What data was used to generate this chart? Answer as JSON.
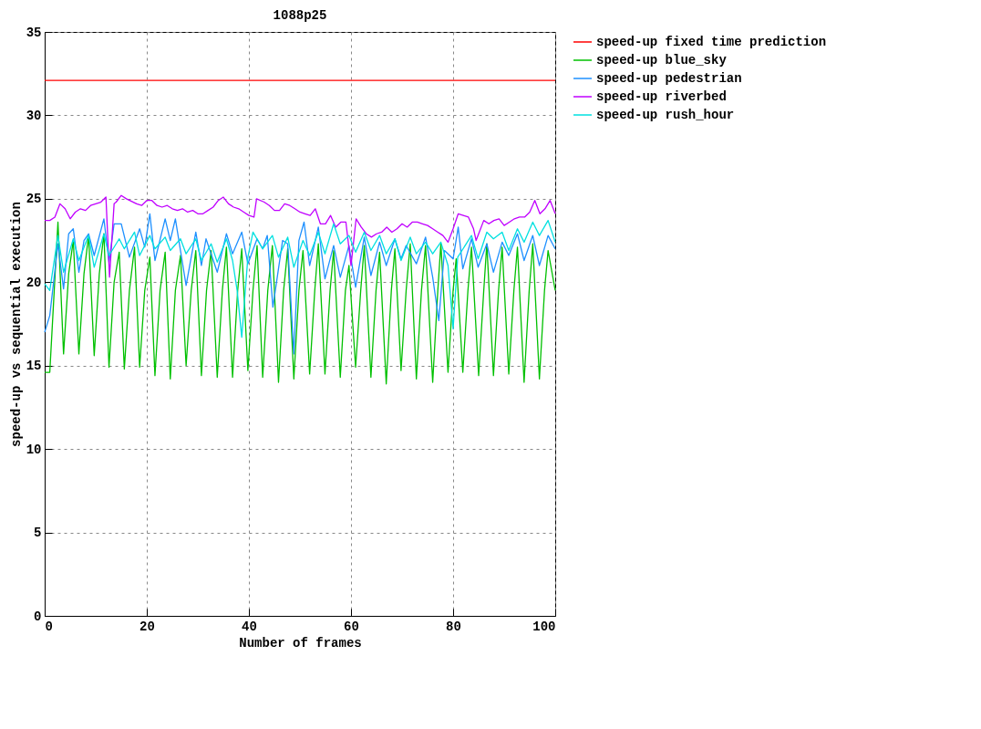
{
  "chart_data": {
    "type": "line",
    "title": "1088p25",
    "xlabel": "Number of frames",
    "ylabel": "speed-up vs sequential execution",
    "xlim": [
      0,
      100
    ],
    "xticks": [
      0,
      20,
      40,
      60,
      80,
      100
    ],
    "ylim": [
      0,
      35
    ],
    "yticks": [
      0,
      5,
      10,
      15,
      20,
      25,
      30,
      35
    ],
    "grid": true,
    "legend": "top right",
    "marker": "none",
    "line_style": "solid",
    "series": [
      {
        "name": "speed-up fixed time prediction",
        "color": "#ff0000",
        "x": [
          0,
          100
        ],
        "values": [
          32.1,
          32.1
        ]
      },
      {
        "name": "speed-up blue_sky",
        "color": "#00c000",
        "x": [
          0,
          1,
          2.6,
          3.7,
          4.7,
          5.6,
          6.7,
          7.7,
          8.6,
          9.7,
          10.7,
          11.6,
          12.6,
          13.6,
          14.6,
          15.6,
          16.6,
          17.6,
          18.6,
          19.6,
          20.6,
          21.6,
          22.6,
          23.6,
          24.6,
          25.6,
          26.6,
          27.7,
          28.7,
          29.6,
          30.7,
          31.7,
          32.6,
          33.8,
          34.8,
          35.6,
          36.8,
          37.8,
          38.6,
          39.8,
          40.8,
          41.6,
          42.7,
          43.7,
          44.6,
          45.8,
          46.8,
          47.6,
          48.8,
          49.8,
          50.6,
          51.9,
          52.9,
          53.6,
          54.9,
          55.9,
          56.6,
          57.9,
          58.9,
          59.6,
          60.9,
          61.9,
          62.6,
          63.9,
          64.9,
          65.6,
          66.9,
          67.9,
          68.6,
          69.8,
          70.8,
          71.6,
          72.8,
          73.8,
          74.6,
          76.0,
          77.0,
          77.6,
          79.0,
          80.0,
          80.6,
          81.9,
          82.9,
          83.6,
          85.0,
          86.0,
          86.6,
          87.9,
          88.9,
          89.6,
          90.9,
          91.9,
          92.6,
          93.9,
          94.9,
          95.6,
          96.9,
          97.9,
          98.6,
          100
        ],
        "values": [
          14.6,
          14.6,
          23.6,
          15.7,
          20.5,
          22.5,
          15.7,
          20.5,
          22.8,
          15.6,
          20.5,
          22.9,
          14.9,
          20.0,
          21.8,
          14.8,
          19.5,
          22.1,
          14.9,
          19.5,
          21.5,
          14.4,
          19.5,
          21.8,
          14.2,
          19.5,
          21.6,
          15.0,
          19.5,
          21.9,
          14.4,
          19.5,
          21.9,
          14.3,
          19.5,
          22.1,
          14.3,
          19.5,
          22.0,
          14.7,
          19.5,
          22.2,
          14.3,
          19.5,
          22.2,
          14.0,
          19.5,
          22.0,
          14.2,
          19.5,
          21.9,
          14.5,
          19.5,
          22.3,
          14.5,
          19.5,
          21.9,
          14.3,
          19.5,
          21.0,
          14.9,
          19.5,
          22.2,
          14.3,
          19.5,
          21.8,
          13.9,
          19.5,
          22.0,
          14.7,
          19.5,
          22.3,
          14.2,
          19.5,
          22.2,
          14.0,
          19.5,
          22.3,
          14.6,
          19.5,
          21.4,
          14.6,
          19.5,
          22.1,
          14.4,
          19.5,
          22.3,
          14.4,
          19.5,
          22.1,
          14.5,
          19.5,
          22.1,
          14.0,
          19.5,
          22.3,
          14.2,
          19.5,
          21.9,
          19.5
        ]
      },
      {
        "name": "speed-up pedestrian",
        "color": "#1e90ff",
        "x": [
          0,
          1,
          2.6,
          3.7,
          4.7,
          5.6,
          6.7,
          7.7,
          8.6,
          9.7,
          11.6,
          12.6,
          13.6,
          15.0,
          16.6,
          18.6,
          19.6,
          20.6,
          21.6,
          23.6,
          24.6,
          25.6,
          27.7,
          29.6,
          30.7,
          31.6,
          33.8,
          35.6,
          36.8,
          38.6,
          39.8,
          41.6,
          42.7,
          43.6,
          44.7,
          46.6,
          47.6,
          48.8,
          49.8,
          50.8,
          51.9,
          53.6,
          54.9,
          56.6,
          57.9,
          59.6,
          60.9,
          62.6,
          63.9,
          65.6,
          66.9,
          68.6,
          69.8,
          70.8,
          72.8,
          74.6,
          76.0,
          77.2,
          78.3,
          80.0,
          81.0,
          81.9,
          83.6,
          84.9,
          86.6,
          87.9,
          89.6,
          90.9,
          92.6,
          93.9,
          95.6,
          96.9,
          98.6,
          100
        ],
        "values": [
          17.0,
          18.0,
          22.3,
          19.6,
          22.9,
          23.2,
          20.6,
          22.5,
          22.9,
          21.6,
          23.8,
          21.2,
          23.5,
          23.5,
          21.5,
          23.2,
          22.1,
          24.1,
          21.3,
          23.8,
          22.5,
          23.8,
          19.8,
          23.0,
          21.0,
          22.6,
          20.6,
          22.9,
          21.7,
          23.0,
          21.1,
          22.6,
          22.0,
          22.8,
          18.5,
          22.5,
          22.3,
          15.7,
          22.5,
          23.6,
          21.0,
          23.3,
          20.2,
          22.2,
          20.3,
          22.2,
          19.7,
          22.7,
          20.4,
          22.4,
          21.0,
          22.6,
          21.4,
          22.2,
          21.1,
          22.7,
          20.3,
          17.7,
          21.9,
          21.4,
          23.3,
          20.8,
          22.6,
          20.9,
          22.3,
          20.6,
          22.4,
          21.6,
          22.9,
          21.3,
          22.8,
          21.0,
          22.8,
          22.0
        ]
      },
      {
        "name": "speed-up riverbed",
        "color": "#c000ff",
        "x": [
          0,
          1,
          2,
          3,
          4,
          5,
          6,
          7,
          8,
          9,
          10,
          11,
          12,
          12.7,
          13.6,
          14,
          15,
          16,
          18,
          19,
          20,
          21,
          22,
          23,
          24,
          25,
          26,
          27,
          28,
          29,
          30,
          31,
          32,
          33,
          34,
          35,
          36,
          37,
          38,
          39,
          40,
          41,
          41.5,
          43,
          44,
          45,
          46,
          47,
          48,
          49,
          50,
          51,
          52,
          53,
          54,
          55,
          56,
          57,
          58,
          59,
          60,
          61,
          62,
          63,
          64,
          65,
          66,
          67,
          68,
          69,
          70,
          71,
          72,
          73,
          74,
          75,
          76,
          77,
          78,
          79,
          80,
          81,
          82,
          83,
          84,
          84.5,
          86,
          87,
          88,
          89,
          90,
          91,
          92,
          93,
          94,
          95,
          96,
          97,
          98,
          99,
          100
        ],
        "values": [
          23.7,
          23.7,
          23.9,
          24.7,
          24.4,
          23.8,
          24.2,
          24.4,
          24.3,
          24.6,
          24.7,
          24.8,
          25.1,
          20.3,
          24.7,
          24.8,
          25.2,
          25.0,
          24.7,
          24.6,
          24.9,
          24.9,
          24.6,
          24.5,
          24.6,
          24.4,
          24.3,
          24.4,
          24.2,
          24.3,
          24.1,
          24.1,
          24.3,
          24.5,
          24.9,
          25.1,
          24.7,
          24.5,
          24.4,
          24.2,
          24.0,
          23.9,
          25.0,
          24.8,
          24.6,
          24.3,
          24.3,
          24.7,
          24.6,
          24.4,
          24.2,
          24.1,
          24.0,
          24.4,
          23.5,
          23.5,
          24.0,
          23.3,
          23.6,
          23.6,
          21.0,
          23.8,
          23.3,
          22.9,
          22.7,
          22.9,
          23.0,
          23.3,
          23.0,
          23.2,
          23.5,
          23.3,
          23.6,
          23.6,
          23.5,
          23.4,
          23.2,
          23.0,
          22.8,
          22.4,
          23.2,
          24.1,
          24.0,
          23.9,
          23.2,
          22.5,
          23.7,
          23.5,
          23.7,
          23.8,
          23.4,
          23.6,
          23.8,
          23.9,
          23.9,
          24.2,
          24.9,
          24.1,
          24.4,
          24.9,
          24.1
        ]
      },
      {
        "name": "speed-up rush_hour",
        "color": "#00e0e0",
        "x": [
          0,
          1,
          2.6,
          3.7,
          5.6,
          6.7,
          8.6,
          9.7,
          11.6,
          12.6,
          14.6,
          15.6,
          17.6,
          18.6,
          20.6,
          21.6,
          23.6,
          24.6,
          26.6,
          27.7,
          29.6,
          30.7,
          32.6,
          33.8,
          35.6,
          36.8,
          37.7,
          38.6,
          39.8,
          40.8,
          42.7,
          44.6,
          45.8,
          47.6,
          48.8,
          50.6,
          51.9,
          53.6,
          54.9,
          56.6,
          57.9,
          59.6,
          60.9,
          62.6,
          63.9,
          65.6,
          66.9,
          68.6,
          69.8,
          71.6,
          72.8,
          74.6,
          76.0,
          77.6,
          79.0,
          80.0,
          80.9,
          83.6,
          84.9,
          86.6,
          87.9,
          89.6,
          90.9,
          92.6,
          93.9,
          95.6,
          96.9,
          98.6,
          100
        ],
        "values": [
          19.9,
          19.5,
          22.8,
          20.6,
          22.6,
          21.3,
          22.8,
          20.9,
          22.9,
          21.6,
          22.6,
          22.0,
          23.0,
          21.6,
          22.8,
          22.0,
          22.7,
          21.9,
          22.6,
          21.7,
          22.6,
          21.3,
          22.3,
          21.2,
          22.6,
          21.3,
          19.5,
          16.7,
          21.5,
          23.0,
          22.0,
          22.8,
          21.5,
          22.7,
          20.9,
          22.5,
          21.6,
          23.0,
          21.7,
          23.5,
          22.3,
          22.8,
          21.8,
          23.0,
          21.9,
          22.8,
          21.7,
          22.6,
          21.3,
          22.7,
          21.7,
          22.4,
          21.7,
          22.4,
          21.0,
          17.2,
          21.5,
          22.8,
          21.4,
          23.0,
          22.6,
          23.0,
          21.9,
          23.2,
          22.4,
          23.6,
          22.8,
          23.7,
          22.4
        ]
      }
    ]
  }
}
